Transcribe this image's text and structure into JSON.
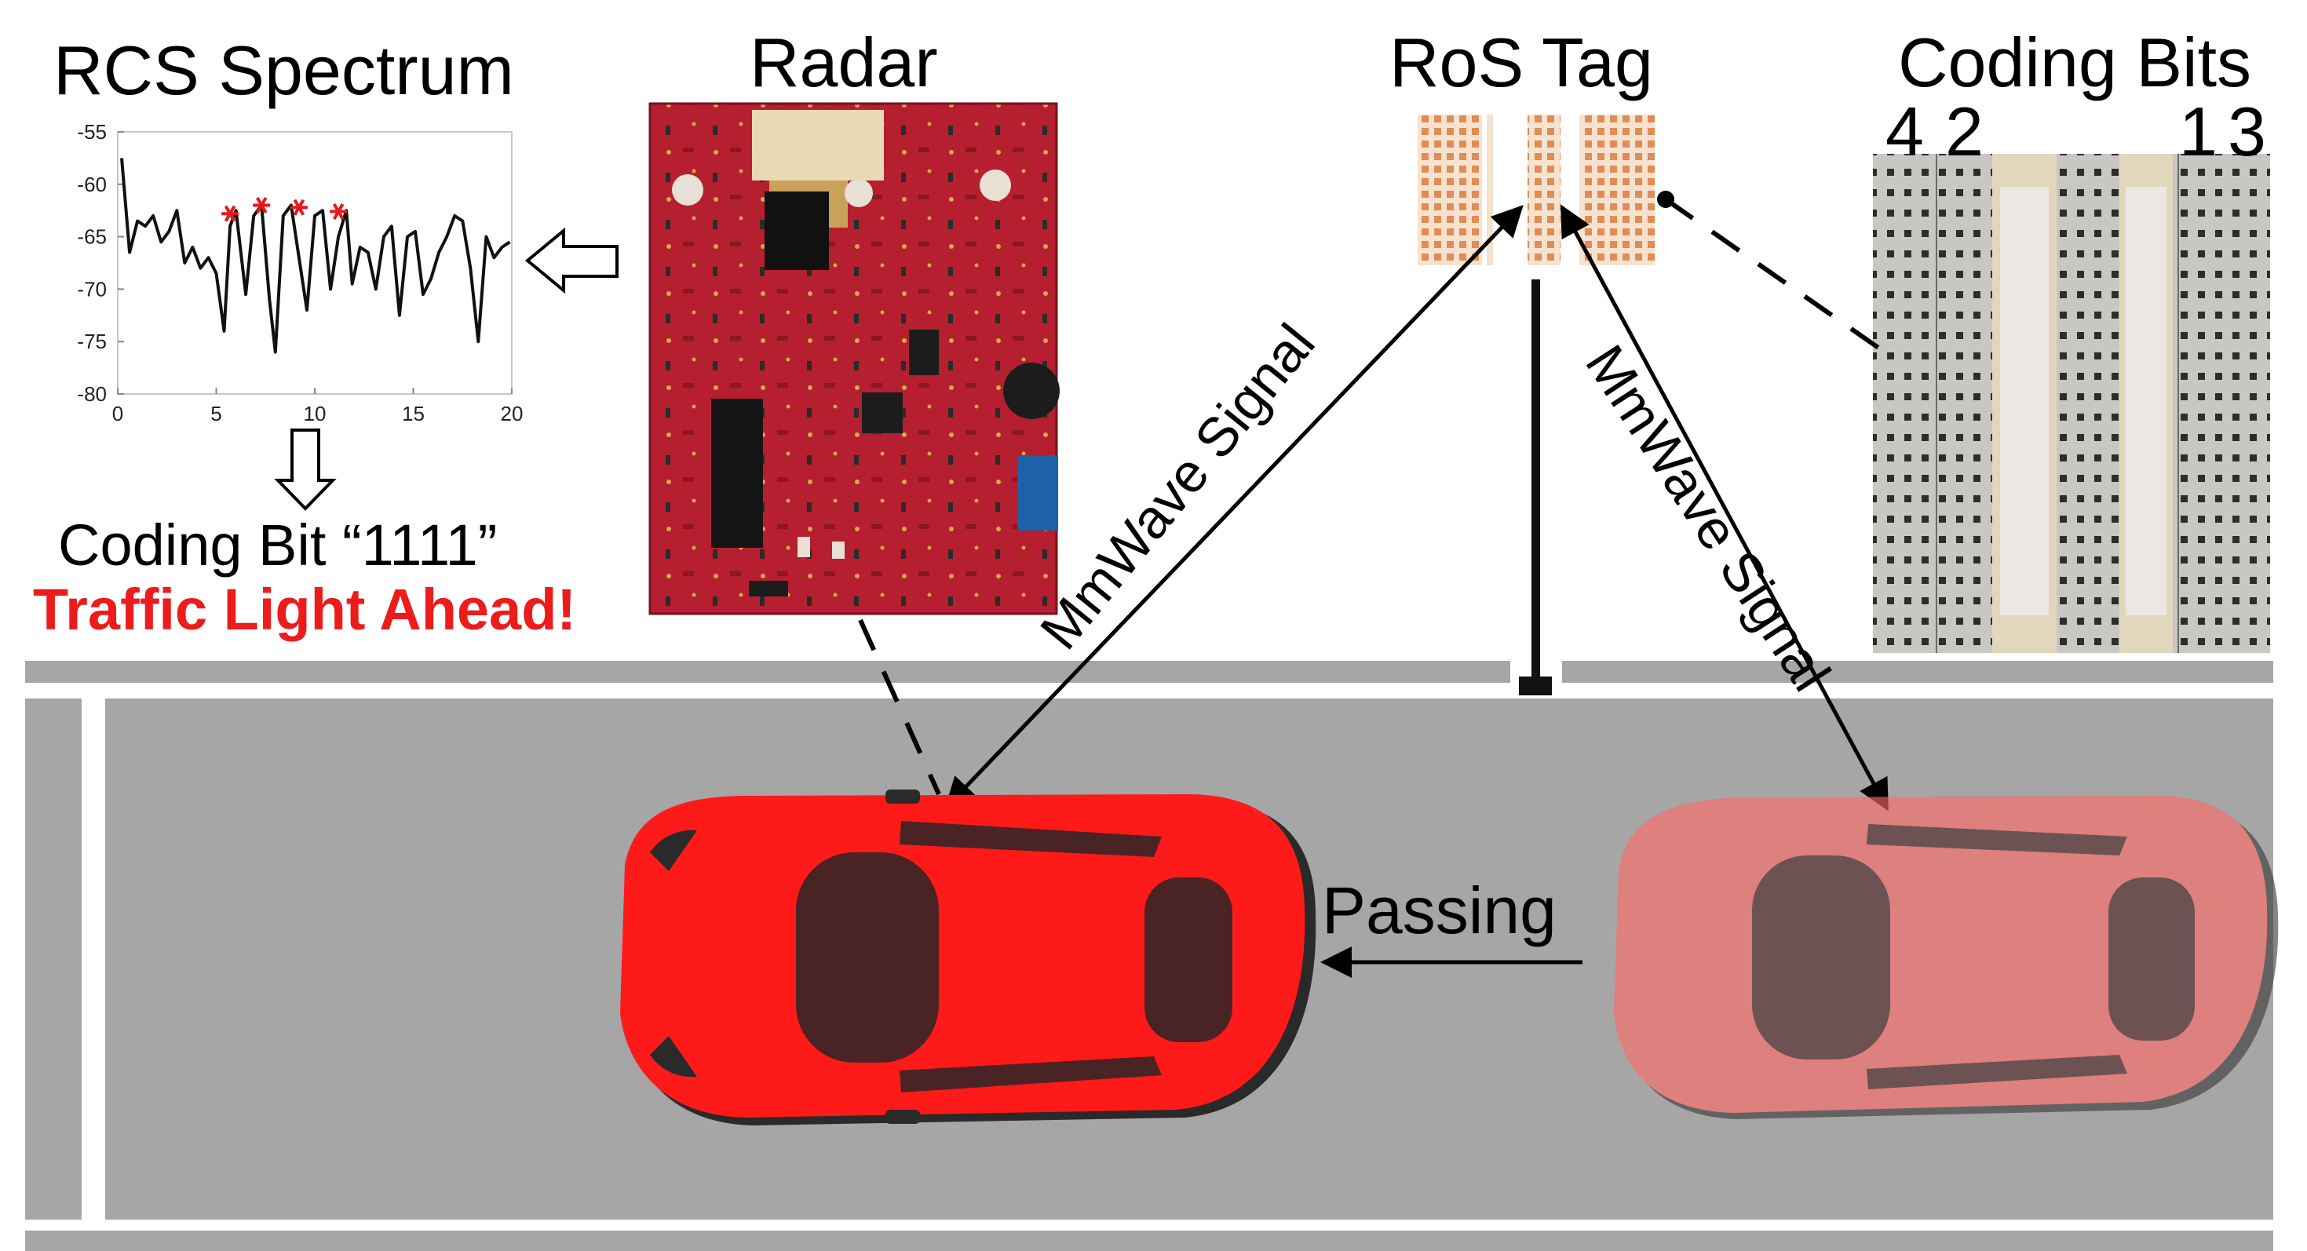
{
  "labels": {
    "rcs_spectrum_title": "RCS Spectrum",
    "radar_title": "Radar",
    "ros_tag_title": "RoS Tag",
    "coding_bits_title": "Coding Bits",
    "coding_bit_result": "Coding Bit “1111”",
    "traffic_warning": "Traffic Light Ahead!",
    "passing": "Passing",
    "mmwave_signal_left": "MmWave Signal",
    "mmwave_signal_right": "MmWave Signal"
  },
  "coding_bit_numbers": [
    "4",
    "2",
    "1",
    "3"
  ],
  "colors": {
    "road": "#a6a6a6",
    "lane_line": "#ffffff",
    "car_red": "#ff1a1a",
    "car_faded": "#ff6a66",
    "warning_red": "#ec1c1c",
    "pcb_red": "#b81e2e",
    "tag_orange": "#e8a070",
    "marker_red": "#e31a1c"
  },
  "icons": [
    "radar-board-image",
    "ros-tag-image",
    "coding-bits-image",
    "red-car-icon",
    "faded-car-icon",
    "hollow-arrow-left-icon",
    "hollow-arrow-down-icon"
  ],
  "chart_data": {
    "type": "line",
    "xlim": [
      0,
      20
    ],
    "ylim": [
      -80,
      -55
    ],
    "xticks": [
      "0",
      "5",
      "10",
      "15",
      "20"
    ],
    "yticks": [
      "-55",
      "-60",
      "-65",
      "-70",
      "-75",
      "-80"
    ],
    "series": [
      {
        "x": [
          0.2,
          0.6,
          1.0,
          1.4,
          1.8,
          2.2,
          2.6,
          3.0,
          3.4,
          3.8,
          4.2,
          4.6,
          5.0,
          5.4,
          5.7,
          6.0,
          6.5,
          6.9,
          7.3,
          7.7,
          8.0,
          8.4,
          8.8,
          9.2,
          9.6,
          10.0,
          10.4,
          10.8,
          11.2,
          11.6,
          11.9,
          12.3,
          12.7,
          13.1,
          13.5,
          13.9,
          14.3,
          14.7,
          15.1,
          15.5,
          15.9,
          16.3,
          16.7,
          17.1,
          17.5,
          17.9,
          18.3,
          18.7,
          19.1,
          19.5,
          19.9
        ],
        "y": [
          -57.5,
          -66.5,
          -63.5,
          -64.0,
          -63.0,
          -65.5,
          -64.5,
          -62.5,
          -67.5,
          -66.0,
          -68.0,
          -67.0,
          -68.5,
          -74.0,
          -64.0,
          -62.5,
          -70.5,
          -63.0,
          -62.0,
          -71.0,
          -76.0,
          -63.0,
          -62.0,
          -67.0,
          -72.0,
          -63.0,
          -62.5,
          -70.0,
          -65.0,
          -62.5,
          -69.5,
          -66.0,
          -66.5,
          -70.0,
          -65.0,
          -64.0,
          -72.5,
          -65.0,
          -64.5,
          -70.5,
          -69.0,
          -66.5,
          -65.0,
          -63.0,
          -63.5,
          -68.0,
          -75.0,
          -65.0,
          -67.0,
          -66.0,
          -65.5
        ]
      },
      {
        "name": "markers",
        "x": [
          5.7,
          7.3,
          9.2,
          11.2
        ],
        "y": [
          -62.8,
          -62.0,
          -62.2,
          -62.6
        ]
      }
    ]
  }
}
